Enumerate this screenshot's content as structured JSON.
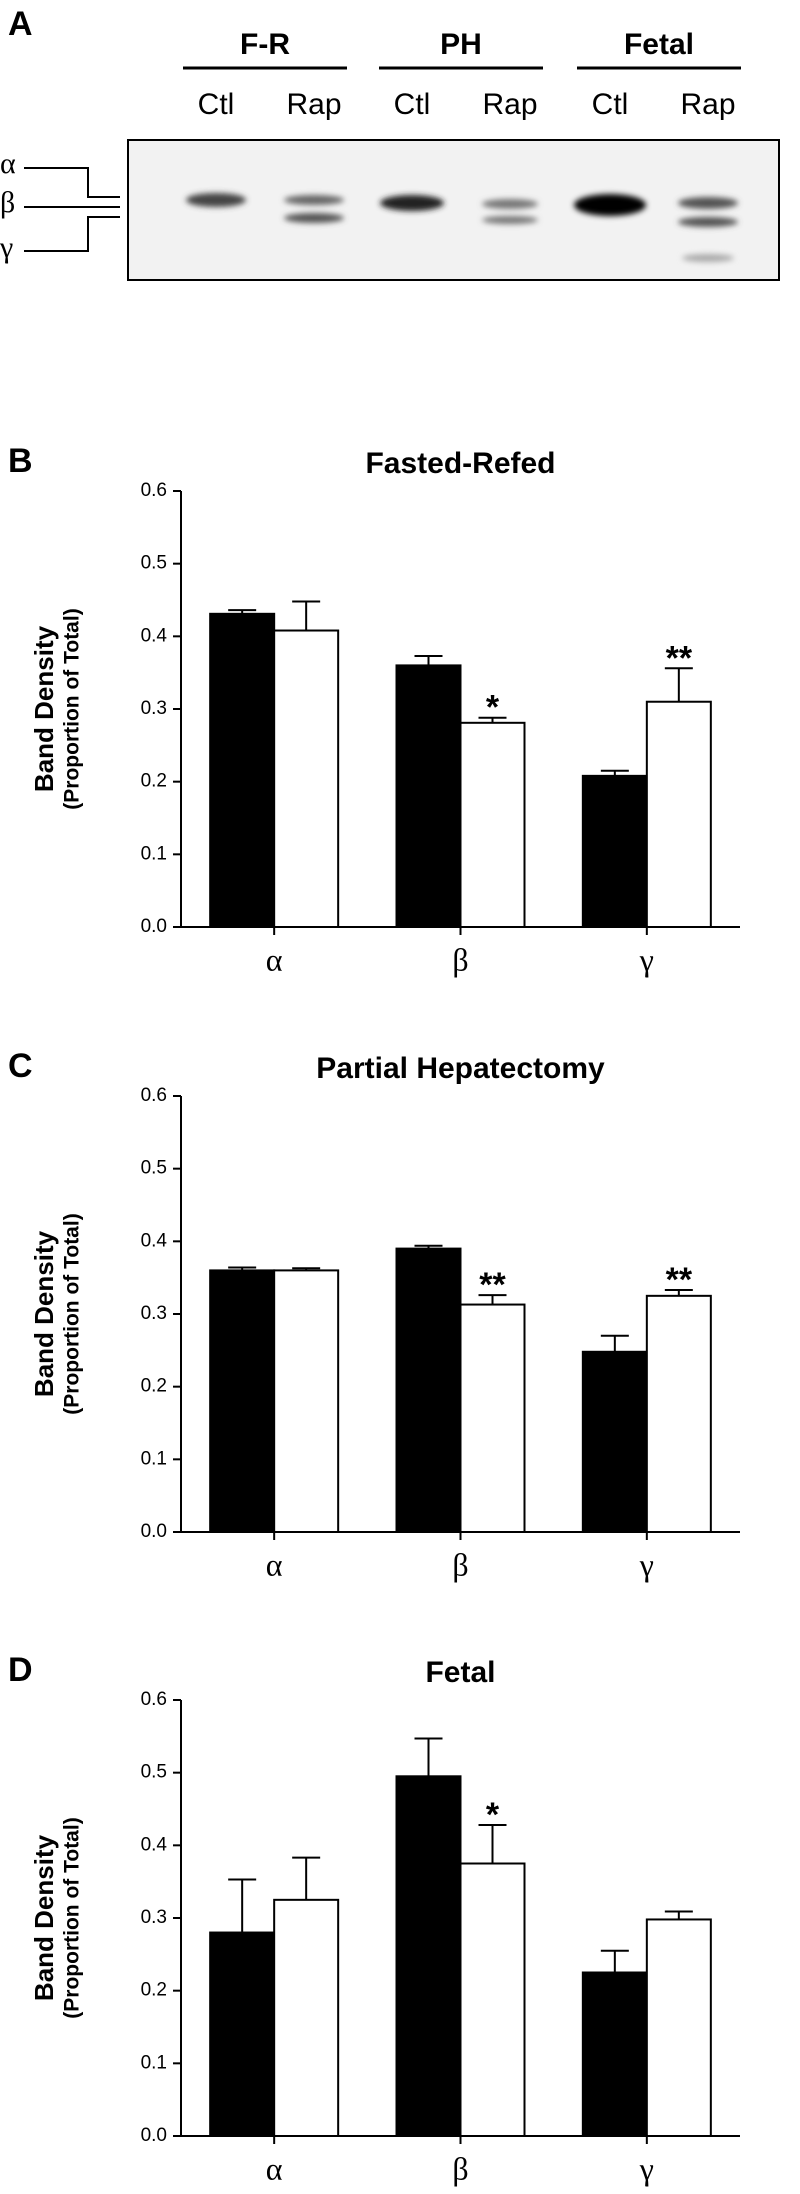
{
  "blot": {
    "panel_label": "A",
    "groups": [
      {
        "label": "F-R",
        "lanes": [
          "Ctl",
          "Rap"
        ]
      },
      {
        "label": "PH",
        "lanes": [
          "Ctl",
          "Rap"
        ]
      },
      {
        "label": "Fetal",
        "lanes": [
          "Ctl",
          "Rap"
        ]
      }
    ],
    "bands": [
      "α",
      "β",
      "γ"
    ]
  },
  "chart_data": [
    {
      "type": "bar",
      "panel_label": "B",
      "title": "Fasted-Refed",
      "ylabel": [
        "Band Density",
        "(Proportion of Total)"
      ],
      "categories": [
        "α",
        "β",
        "γ"
      ],
      "ylim": [
        0,
        0.6
      ],
      "yticks": [
        {
          "value": 0,
          "label": "0.0"
        },
        0.1,
        0.2,
        0.3,
        0.4,
        0.5,
        0.6
      ],
      "series": [
        {
          "color": "#000000",
          "values": [
            0.431,
            0.36,
            0.208
          ],
          "errors": [
            0.005,
            0.013,
            0.007
          ],
          "significance": [
            null,
            null,
            null
          ]
        },
        {
          "color": "#ffffff",
          "values": [
            0.408,
            0.281,
            0.31
          ],
          "errors": [
            0.04,
            0.007,
            0.046
          ],
          "significance": [
            null,
            "*",
            "**"
          ]
        }
      ]
    },
    {
      "type": "bar",
      "panel_label": "C",
      "title": "Partial Hepatectomy",
      "ylabel": [
        "Band Density",
        "(Proportion of Total)"
      ],
      "categories": [
        "α",
        "β",
        "γ"
      ],
      "ylim": [
        0,
        0.6
      ],
      "yticks": [
        {
          "value": 0,
          "label": "0.0"
        },
        0.1,
        0.2,
        0.3,
        0.4,
        0.5,
        0.6
      ],
      "series": [
        {
          "color": "#000000",
          "values": [
            0.36,
            0.39,
            0.248
          ],
          "errors": [
            0.004,
            0.004,
            0.022
          ],
          "significance": [
            null,
            null,
            null
          ]
        },
        {
          "color": "#ffffff",
          "values": [
            0.36,
            0.313,
            0.325
          ],
          "errors": [
            0.003,
            0.013,
            0.008
          ],
          "significance": [
            null,
            "**",
            "**"
          ]
        }
      ]
    },
    {
      "type": "bar",
      "panel_label": "D",
      "title": "Fetal",
      "ylabel": [
        "Band Density",
        "(Proportion of Total)"
      ],
      "categories": [
        "α",
        "β",
        "γ"
      ],
      "ylim": [
        0,
        0.6
      ],
      "yticks": [
        {
          "value": 0,
          "label": "0.0"
        },
        0.1,
        0.2,
        0.3,
        0.4,
        0.5,
        0.6
      ],
      "series": [
        {
          "color": "#000000",
          "values": [
            0.28,
            0.495,
            0.225
          ],
          "errors": [
            0.073,
            0.052,
            0.03
          ],
          "significance": [
            null,
            null,
            null
          ]
        },
        {
          "color": "#ffffff",
          "values": [
            0.325,
            0.375,
            0.298
          ],
          "errors": [
            0.058,
            0.053,
            0.011
          ],
          "significance": [
            null,
            "*",
            null
          ]
        }
      ]
    }
  ]
}
